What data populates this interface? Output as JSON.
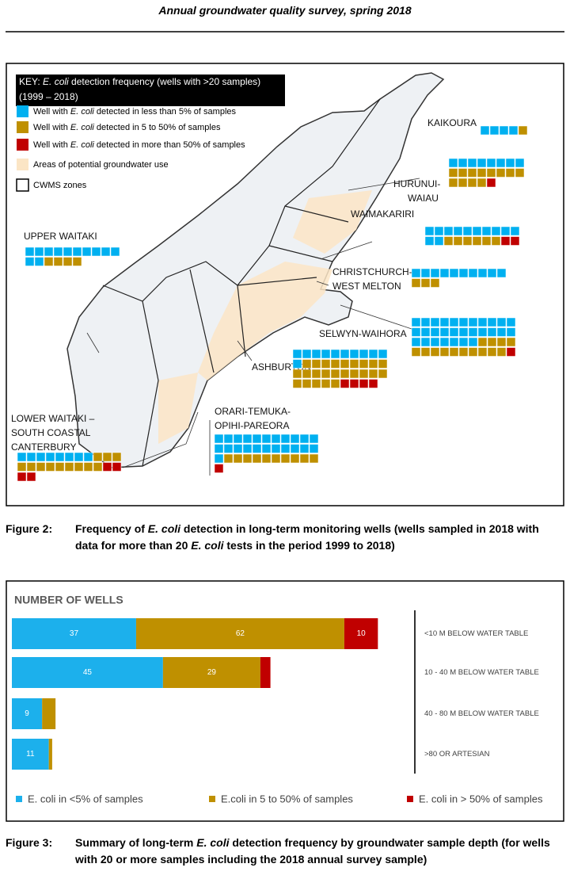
{
  "header": {
    "title": "Annual groundwater quality survey, spring 2018"
  },
  "figure2": {
    "key": {
      "title": [
        "KEY: ",
        "E. coli",
        " detection frequency  (wells with >20 samples)"
      ],
      "title_line2": "(1999 – 2018)",
      "items": [
        {
          "color": "#00b0f0",
          "text": [
            "Well with ",
            "E. coli",
            " detected in less than 5% of samples"
          ]
        },
        {
          "color": "#bf9000",
          "text": [
            "Well with ",
            "E. coli",
            " detected in 5 to 50% of samples"
          ]
        },
        {
          "color": "#c00000",
          "text": [
            "Well with ",
            "E. coli",
            "  detected in more than 50% of samples"
          ]
        },
        {
          "color": "#fbe5c5",
          "text": [
            "Areas of potential groundwater use"
          ]
        },
        {
          "color": "#ffffff",
          "text": [
            "CWMS zones"
          ]
        }
      ]
    },
    "zones": [
      {
        "label": [
          "KAIKOURA"
        ],
        "counts": [
          4,
          1,
          0
        ]
      },
      {
        "label": [
          "HURUNUI-",
          "WAIAU"
        ],
        "counts": [
          8,
          12,
          1
        ]
      },
      {
        "label": [
          "UPPER WAITAKI"
        ],
        "counts": [
          12,
          4,
          0
        ]
      },
      {
        "label": [
          "WAIMAKARIRI"
        ],
        "counts": [
          12,
          6,
          2
        ]
      },
      {
        "label": [
          "CHRISTCHURCH-",
          "WEST MELTON"
        ],
        "counts": [
          10,
          3,
          0
        ]
      },
      {
        "label": [
          "SELWYN-WAIHORA"
        ],
        "counts": [
          29,
          14,
          1
        ]
      },
      {
        "label": [
          "ASHBURTON"
        ],
        "counts": [
          11,
          24,
          4
        ]
      },
      {
        "label": [
          "ORARI-TEMUKA-",
          "OPIHI-PAREORA"
        ],
        "counts": [
          23,
          10,
          1
        ]
      },
      {
        "label": [
          "LOWER WAITAKI –",
          "SOUTH COASTAL",
          "CANTERBURY"
        ],
        "counts": [
          8,
          12,
          4
        ]
      }
    ],
    "caption": {
      "number": "Figure 2:",
      "text": [
        "Frequency of ",
        "E. coli",
        " detection in long-term monitoring wells (wells sampled in 2018 with data for more than 20 ",
        "E. coli",
        " tests in the period 1999 to 2018)"
      ]
    }
  },
  "chart_data": {
    "type": "bar",
    "orientation": "horizontal",
    "stacked": true,
    "title": "NUMBER OF WELLS",
    "categories": [
      "<10 M BELOW WATER TABLE",
      "10 - 40 M BELOW WATER TABLE",
      "40 - 80 M BELOW WATER TABLE",
      ">80 OR ARTESIAN"
    ],
    "series": [
      {
        "name": "E. coli in <5% of samples",
        "color": "#1cb0ec",
        "values": [
          37,
          45,
          9,
          11
        ]
      },
      {
        "name": "E.coli in 5 to 50% of samples",
        "color": "#bf9000",
        "values": [
          62,
          29,
          4,
          1
        ]
      },
      {
        "name": "E. coli in > 50% of samples",
        "color": "#c00000",
        "values": [
          10,
          3,
          0,
          0
        ]
      }
    ],
    "xlim": [
      0,
      120
    ],
    "legend": "bottom"
  },
  "figure3": {
    "caption": {
      "number": "Figure 3:",
      "text": [
        "Summary of long-term ",
        "E. coli",
        " detection frequency by groundwater sample depth (for wells with 20 or more samples including the 2018 annual survey sample)"
      ]
    }
  }
}
